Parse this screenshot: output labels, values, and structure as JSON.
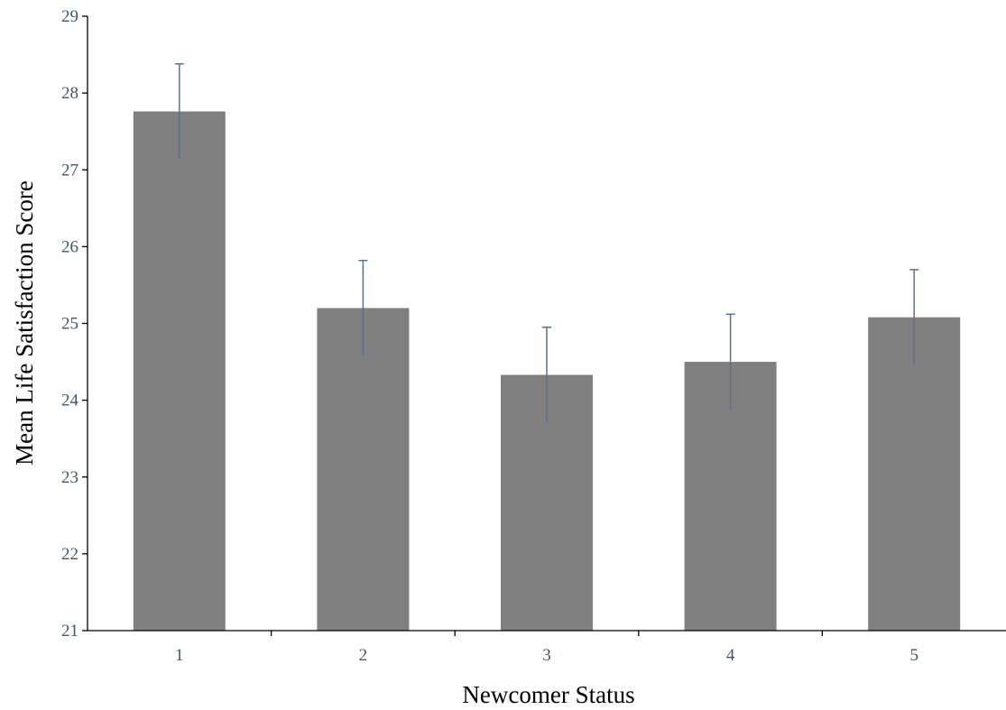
{
  "chart_data": {
    "type": "bar",
    "title": "",
    "xlabel": "Newcomer Status",
    "ylabel": "Mean Life Satisfaction Score",
    "categories": [
      "1",
      "2",
      "3",
      "4",
      "5"
    ],
    "values": [
      27.76,
      25.2,
      24.33,
      24.5,
      25.08
    ],
    "error_bars": [
      0.62,
      0.62,
      0.62,
      0.62,
      0.62
    ],
    "ylim": [
      21,
      29
    ],
    "yticks": [
      "21",
      "22",
      "23",
      "24",
      "25",
      "26",
      "27",
      "28",
      "29"
    ],
    "grid": false,
    "legend": "none",
    "colors": {
      "bar": "#808080",
      "error_bar": "#5b7090",
      "axis": "#000000",
      "tick_label": "#44546a"
    }
  }
}
